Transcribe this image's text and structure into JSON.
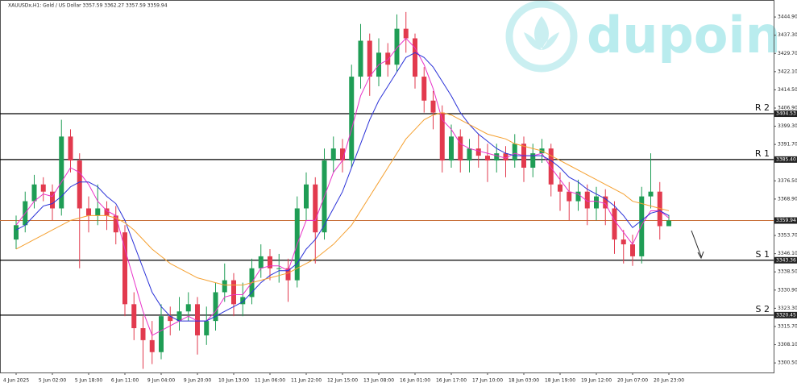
{
  "chart_data": {
    "type": "candlestick",
    "title": "XAUUSDx,H1:  Gold / US Dollar  3357.59 3362.27 3357.59 3359.94",
    "watermark": "dupoin",
    "categories": [
      "4 Jun 2025",
      null,
      null,
      null,
      "5 Jun 02:00",
      null,
      null,
      null,
      "5 Jun 18:00",
      null,
      null,
      null,
      "6 Jun 11:00",
      null,
      null,
      null,
      "9 Jun 04:00",
      null,
      null,
      null,
      "9 Jun 20:00",
      null,
      null,
      null,
      "10 Jun 13:00",
      null,
      null,
      null,
      "11 Jun 06:00",
      null,
      null,
      null,
      "11 Jun 22:00",
      null,
      null,
      null,
      "12 Jun 15:00",
      null,
      null,
      null,
      "13 Jun 08:00",
      null,
      null,
      null,
      "16 Jun 01:00",
      null,
      null,
      null,
      "16 Jun 17:00",
      null,
      null,
      null,
      "17 Jun 10:00",
      null,
      null,
      null,
      "18 Jun 03:00",
      null,
      null,
      null,
      "18 Jun 19:00",
      null,
      null,
      null,
      "19 Jun 12:00",
      null,
      null,
      null,
      "20 Jun 07:00",
      null,
      null,
      null,
      "20 Jun 23:00"
    ],
    "open": [
      3352,
      3358,
      3368,
      3375,
      3372,
      3365,
      3395,
      3385,
      3365,
      3362,
      3365,
      3362,
      3355,
      3325,
      3315,
      3310,
      3305,
      3320,
      3318,
      3322,
      3325,
      3312,
      3318,
      3330,
      3335,
      3325,
      3328,
      3340,
      3345,
      3340,
      3340,
      3335,
      3365,
      3375,
      3355,
      3385,
      3390,
      3385,
      3420,
      3435,
      3420,
      3430,
      3425,
      3440,
      3436,
      3420,
      3410,
      3405,
      3385,
      3395,
      3385,
      3390,
      3387,
      3385,
      3388,
      3385,
      3392,
      3382,
      3388,
      3390,
      3375,
      3372,
      3368,
      3372,
      3365,
      3370,
      3365,
      3352,
      3350,
      3345,
      3370,
      3372,
      3357.59
    ],
    "high": [
      3362,
      3372,
      3379,
      3378,
      3375,
      3402,
      3398,
      3388,
      3370,
      3375,
      3368,
      3366,
      3358,
      3330,
      3320,
      3318,
      3325,
      3324,
      3328,
      3330,
      3328,
      3324,
      3334,
      3342,
      3338,
      3334,
      3344,
      3350,
      3348,
      3346,
      3344,
      3370,
      3380,
      3378,
      3390,
      3395,
      3394,
      3425,
      3442,
      3438,
      3436,
      3434,
      3446,
      3447,
      3438,
      3424,
      3414,
      3408,
      3400,
      3398,
      3394,
      3396,
      3392,
      3392,
      3391,
      3396,
      3395,
      3392,
      3394,
      3392,
      3380,
      3376,
      3377,
      3375,
      3374,
      3373,
      3368,
      3356,
      3354,
      3374,
      3388,
      3376,
      3362.27
    ],
    "low": [
      3348,
      3355,
      3365,
      3368,
      3360,
      3362,
      3380,
      3340,
      3355,
      3358,
      3356,
      3350,
      3320,
      3310,
      3298,
      3300,
      3302,
      3312,
      3314,
      3318,
      3304,
      3308,
      3314,
      3326,
      3320,
      3320,
      3325,
      3336,
      3335,
      3334,
      3326,
      3332,
      3360,
      3342,
      3352,
      3380,
      3380,
      3382,
      3415,
      3412,
      3416,
      3420,
      3422,
      3430,
      3415,
      3405,
      3398,
      3380,
      3382,
      3380,
      3380,
      3382,
      3376,
      3380,
      3378,
      3382,
      3376,
      3378,
      3384,
      3370,
      3364,
      3360,
      3364,
      3358,
      3360,
      3358,
      3346,
      3342,
      3341,
      3342,
      3365,
      3352,
      3357.59
    ],
    "close": [
      3358,
      3368,
      3375,
      3372,
      3365,
      3395,
      3385,
      3365,
      3362,
      3365,
      3362,
      3355,
      3325,
      3315,
      3310,
      3305,
      3320,
      3318,
      3322,
      3325,
      3312,
      3318,
      3330,
      3335,
      3325,
      3328,
      3340,
      3345,
      3340,
      3340,
      3335,
      3365,
      3375,
      3355,
      3385,
      3390,
      3385,
      3420,
      3435,
      3420,
      3430,
      3425,
      3440,
      3436,
      3420,
      3410,
      3405,
      3385,
      3395,
      3385,
      3390,
      3387,
      3385,
      3388,
      3385,
      3392,
      3382,
      3388,
      3390,
      3375,
      3372,
      3368,
      3372,
      3365,
      3370,
      3365,
      3352,
      3350,
      3345,
      3370,
      3372,
      3357.59,
      3359.94
    ],
    "up_color": "#1f9d55",
    "down_color": "#e23a4e",
    "series": [
      {
        "color": "#e832c8",
        "values": [
          3358,
          3363,
          3368,
          3371,
          3370,
          3376,
          3382,
          3380,
          3375,
          3368,
          3364,
          3362,
          3348,
          3335,
          3322,
          3312,
          3314,
          3316,
          3318,
          3320,
          3318,
          3318,
          3322,
          3328,
          3329,
          3329,
          3334,
          3340,
          3341,
          3341,
          3339,
          3350,
          3360,
          3360,
          3370,
          3380,
          3385,
          3398,
          3412,
          3420,
          3425,
          3427,
          3432,
          3436,
          3432,
          3425,
          3415,
          3402,
          3398,
          3392,
          3390,
          3389,
          3388,
          3387,
          3386,
          3388,
          3387,
          3387,
          3388,
          3382,
          3377,
          3372,
          3371,
          3368,
          3368,
          3367,
          3360,
          3355,
          3350,
          3358,
          3364,
          3364,
          3361
        ]
      },
      {
        "color": "#2b32d8",
        "values": [
          3356,
          3358,
          3362,
          3366,
          3367,
          3370,
          3374,
          3376,
          3376,
          3374,
          3370,
          3367,
          3360,
          3350,
          3340,
          3330,
          3324,
          3320,
          3318,
          3318,
          3318,
          3318,
          3320,
          3322,
          3324,
          3326,
          3330,
          3334,
          3337,
          3339,
          3339,
          3342,
          3348,
          3352,
          3358,
          3365,
          3372,
          3382,
          3392,
          3402,
          3410,
          3416,
          3422,
          3428,
          3430,
          3428,
          3424,
          3418,
          3412,
          3405,
          3400,
          3396,
          3393,
          3390,
          3388,
          3387,
          3387,
          3387,
          3387,
          3385,
          3382,
          3378,
          3376,
          3373,
          3371,
          3369,
          3366,
          3362,
          3357,
          3360,
          3363,
          3364,
          3362
        ]
      },
      {
        "color": "#f5a030",
        "values": [
          3348,
          3350,
          3352,
          3354,
          3356,
          3358,
          3360,
          3361,
          3362,
          3362,
          3362,
          3361,
          3359,
          3356,
          3352,
          3348,
          3345,
          3342,
          3340,
          3338,
          3336,
          3335,
          3334,
          3333,
          3333,
          3333,
          3334,
          3335,
          3336,
          3337,
          3338,
          3340,
          3342,
          3344,
          3347,
          3350,
          3354,
          3358,
          3364,
          3370,
          3376,
          3382,
          3388,
          3394,
          3398,
          3402,
          3404,
          3405,
          3404,
          3402,
          3400,
          3398,
          3396,
          3395,
          3394,
          3392,
          3391,
          3390,
          3389,
          3387,
          3385,
          3383,
          3381,
          3379,
          3377,
          3375,
          3373,
          3371,
          3368,
          3367,
          3366,
          3365,
          3364
        ]
      }
    ],
    "levels": [
      {
        "label": "R 2",
        "value": 3404.53,
        "color": "#000000"
      },
      {
        "label": "R 1",
        "value": 3385.4,
        "value_label": "3385.40",
        "color": "#000000"
      },
      {
        "value": 3359.94,
        "color": "#c8703a"
      },
      {
        "label": "S 1",
        "value": 3343.36,
        "color": "#000000"
      },
      {
        "label": "S 2",
        "value": 3320.45,
        "color": "#000000"
      }
    ],
    "ylim": [
      3296.5,
      3452.0
    ],
    "yticks": [
      {
        "value": 3444.9,
        "label": "3444.90"
      },
      {
        "value": 3437.3,
        "label": "3437.30"
      },
      {
        "value": 3429.7,
        "label": "3429.70"
      },
      {
        "value": 3422.1,
        "label": "3422.10"
      },
      {
        "value": 3414.5,
        "label": "3414.50"
      },
      {
        "value": 3406.9,
        "label": "3406.90"
      },
      {
        "value": 3399.3,
        "label": "3399.30"
      },
      {
        "value": 3391.7,
        "label": "3391.70"
      },
      {
        "value": 3376.5,
        "label": "3376.50"
      },
      {
        "value": 3368.9,
        "label": "3368.90"
      },
      {
        "value": 3353.7,
        "label": "3353.70"
      },
      {
        "value": 3346.1,
        "label": "3346.10"
      },
      {
        "value": 3338.5,
        "label": "3338.50"
      },
      {
        "value": 3330.9,
        "label": "3330.90"
      },
      {
        "value": 3323.3,
        "label": "3323.30"
      },
      {
        "value": 3315.7,
        "label": "3315.70"
      },
      {
        "value": 3308.1,
        "label": "3308.10"
      },
      {
        "value": 3300.5,
        "label": "3300.50"
      }
    ]
  }
}
